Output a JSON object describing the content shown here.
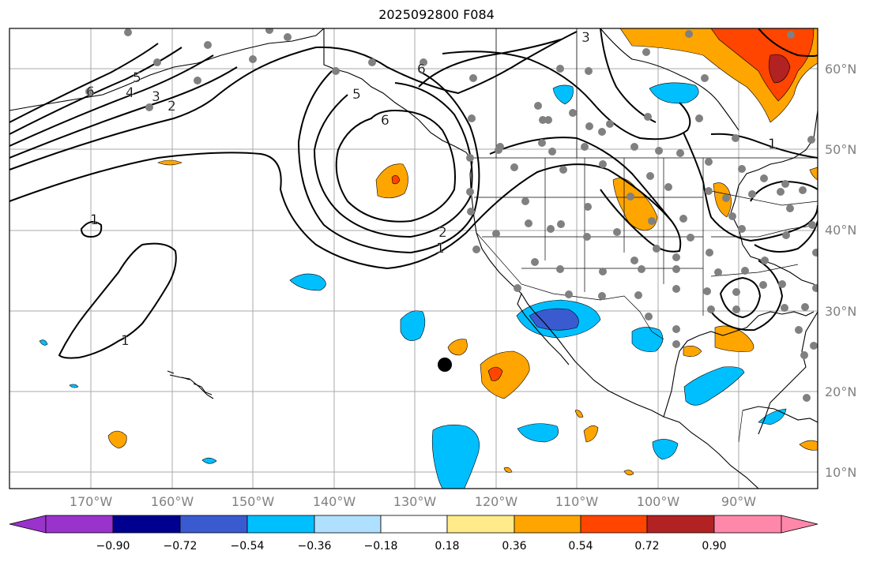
{
  "title": "2025092800 F084",
  "lat_labels": [
    "60°N",
    "50°N",
    "40°N",
    "30°N",
    "20°N",
    "10°N"
  ],
  "lon_labels": [
    "170°W",
    "160°W",
    "150°W",
    "140°W",
    "130°W",
    "120°W",
    "110°W",
    "100°W",
    "90°W"
  ],
  "contour_labels": [
    "1",
    "2",
    "3",
    "4",
    "5",
    "6"
  ],
  "colorbar": {
    "ticks": [
      "−0.90",
      "−0.72",
      "−0.54",
      "−0.36",
      "−0.18",
      "0.18",
      "0.36",
      "0.54",
      "0.72",
      "0.90"
    ],
    "colors": [
      "#9933cc",
      "#000090",
      "#3a5bd0",
      "#00bfff",
      "#b0e0ff",
      "#ffffff",
      "#ffeb8a",
      "#ffa500",
      "#ff4500",
      "#b22222",
      "#ff88aa"
    ]
  },
  "colors": {
    "grid": "#aaaaaa",
    "coast": "#000000",
    "station": "#808080"
  }
}
